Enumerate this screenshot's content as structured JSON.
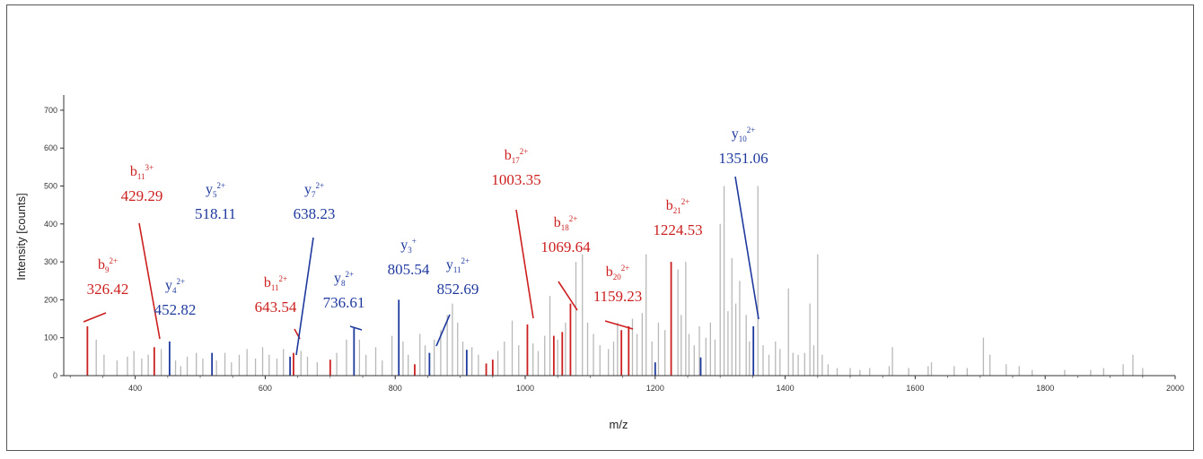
{
  "chart_data": {
    "type": "bar",
    "title": "",
    "xlabel": "m/z",
    "ylabel": "Intensity [counts]",
    "xlim": [
      290,
      2000
    ],
    "ylim": [
      0,
      740
    ],
    "xticks": [
      400,
      600,
      800,
      1000,
      1200,
      1400,
      1600,
      1800,
      2000
    ],
    "xtick_labels": [
      "400",
      "600",
      "800",
      "1000",
      "1200",
      "1400",
      "1600",
      "1800",
      "2000"
    ],
    "yticks": [
      0,
      100,
      200,
      300,
      400,
      500,
      600,
      700
    ],
    "ytick_labels": [
      "0",
      "100",
      "200",
      "300",
      "400",
      "500",
      "600",
      "700"
    ],
    "grid": false,
    "colors": {
      "b_ion": "#cc1f1f",
      "y_ion": "#1f3a9e",
      "unassigned": "#b8b8b8",
      "b_ion_light": "#d98a5a"
    },
    "series": [
      {
        "name": "b ions",
        "peaks": [
          [
            326.42,
            130
          ],
          [
            429.29,
            75
          ],
          [
            643.54,
            60
          ],
          [
            700,
            42
          ],
          [
            830,
            30
          ],
          [
            940,
            32
          ],
          [
            950,
            42
          ],
          [
            1003.35,
            135
          ],
          [
            1069.64,
            190
          ],
          [
            1159.23,
            130
          ],
          [
            1224.53,
            300
          ],
          [
            1044,
            105
          ],
          [
            1057,
            115
          ],
          [
            1148,
            120
          ]
        ]
      },
      {
        "name": "y ions",
        "peaks": [
          [
            452.82,
            90
          ],
          [
            518.11,
            60
          ],
          [
            638.23,
            50
          ],
          [
            736.61,
            125
          ],
          [
            805.54,
            200
          ],
          [
            852.69,
            60
          ],
          [
            910,
            68
          ],
          [
            1200,
            35
          ],
          [
            1270,
            48
          ],
          [
            1351.06,
            130
          ]
        ]
      },
      {
        "name": "unassigned",
        "peaks": [
          [
            340,
            95
          ],
          [
            352,
            55
          ],
          [
            372,
            40
          ],
          [
            388,
            50
          ],
          [
            398,
            65
          ],
          [
            410,
            45
          ],
          [
            420,
            55
          ],
          [
            440,
            70
          ],
          [
            462,
            40
          ],
          [
            470,
            25
          ],
          [
            480,
            50
          ],
          [
            494,
            60
          ],
          [
            504,
            45
          ],
          [
            525,
            40
          ],
          [
            538,
            60
          ],
          [
            548,
            35
          ],
          [
            560,
            55
          ],
          [
            572,
            70
          ],
          [
            585,
            45
          ],
          [
            596,
            75
          ],
          [
            606,
            55
          ],
          [
            618,
            45
          ],
          [
            628,
            70
          ],
          [
            655,
            65
          ],
          [
            665,
            50
          ],
          [
            680,
            35
          ],
          [
            710,
            60
          ],
          [
            725,
            95
          ],
          [
            745,
            95
          ],
          [
            755,
            55
          ],
          [
            770,
            75
          ],
          [
            780,
            40
          ],
          [
            795,
            105
          ],
          [
            812,
            90
          ],
          [
            820,
            55
          ],
          [
            838,
            110
          ],
          [
            846,
            80
          ],
          [
            860,
            95
          ],
          [
            870,
            120
          ],
          [
            880,
            160
          ],
          [
            888,
            190
          ],
          [
            896,
            140
          ],
          [
            904,
            90
          ],
          [
            918,
            75
          ],
          [
            928,
            55
          ],
          [
            958,
            65
          ],
          [
            968,
            90
          ],
          [
            980,
            145
          ],
          [
            990,
            80
          ],
          [
            1012,
            85
          ],
          [
            1020,
            65
          ],
          [
            1030,
            105
          ],
          [
            1038,
            210
          ],
          [
            1050,
            95
          ],
          [
            1062,
            140
          ],
          [
            1078,
            300
          ],
          [
            1088,
            320
          ],
          [
            1096,
            140
          ],
          [
            1105,
            110
          ],
          [
            1115,
            80
          ],
          [
            1128,
            70
          ],
          [
            1136,
            90
          ],
          [
            1142,
            140
          ],
          [
            1165,
            150
          ],
          [
            1172,
            110
          ],
          [
            1180,
            165
          ],
          [
            1186,
            320
          ],
          [
            1195,
            90
          ],
          [
            1205,
            140
          ],
          [
            1215,
            120
          ],
          [
            1235,
            280
          ],
          [
            1240,
            160
          ],
          [
            1247,
            300
          ],
          [
            1252,
            110
          ],
          [
            1260,
            80
          ],
          [
            1268,
            130
          ],
          [
            1278,
            100
          ],
          [
            1285,
            140
          ],
          [
            1292,
            95
          ],
          [
            1300,
            400
          ],
          [
            1306,
            500
          ],
          [
            1312,
            170
          ],
          [
            1318,
            310
          ],
          [
            1324,
            190
          ],
          [
            1330,
            250
          ],
          [
            1340,
            160
          ],
          [
            1345,
            90
          ],
          [
            1358,
            500
          ],
          [
            1366,
            80
          ],
          [
            1375,
            55
          ],
          [
            1385,
            90
          ],
          [
            1392,
            70
          ],
          [
            1405,
            230
          ],
          [
            1412,
            60
          ],
          [
            1420,
            55
          ],
          [
            1430,
            60
          ],
          [
            1438,
            190
          ],
          [
            1444,
            80
          ],
          [
            1450,
            320
          ],
          [
            1457,
            55
          ],
          [
            1466,
            30
          ],
          [
            1480,
            20
          ],
          [
            1500,
            20
          ],
          [
            1515,
            15
          ],
          [
            1530,
            20
          ],
          [
            1560,
            25
          ],
          [
            1565,
            75
          ],
          [
            1590,
            20
          ],
          [
            1620,
            25
          ],
          [
            1625,
            35
          ],
          [
            1660,
            25
          ],
          [
            1680,
            20
          ],
          [
            1705,
            100
          ],
          [
            1715,
            55
          ],
          [
            1740,
            30
          ],
          [
            1760,
            25
          ],
          [
            1780,
            15
          ],
          [
            1830,
            15
          ],
          [
            1870,
            15
          ],
          [
            1890,
            20
          ],
          [
            1920,
            30
          ],
          [
            1935,
            55
          ],
          [
            1950,
            20
          ]
        ]
      }
    ],
    "annotations": [
      {
        "ion": "b",
        "sub": "9",
        "sup": "2+",
        "mz": "326.42",
        "color": "red",
        "peak": 326.42
      },
      {
        "ion": "b",
        "sub": "11",
        "sup": "3+",
        "mz": "429.29",
        "color": "red",
        "peak": 429.29
      },
      {
        "ion": "y",
        "sub": "4",
        "sup": "2+",
        "mz": "452.82",
        "color": "blue",
        "peak": 452.82
      },
      {
        "ion": "y",
        "sub": "5",
        "sup": "2+",
        "mz": "518.11",
        "color": "blue",
        "peak": 518.11
      },
      {
        "ion": "b",
        "sub": "11",
        "sup": "2+",
        "mz": "643.54",
        "color": "red",
        "peak": 643.54
      },
      {
        "ion": "y",
        "sub": "7",
        "sup": "2+",
        "mz": "638.23",
        "color": "blue",
        "peak": 638.23
      },
      {
        "ion": "y",
        "sub": "8",
        "sup": "2+",
        "mz": "736.61",
        "color": "blue",
        "peak": 736.61
      },
      {
        "ion": "y",
        "sub": "3",
        "sup": "+",
        "mz": "805.54",
        "color": "blue",
        "peak": 805.54
      },
      {
        "ion": "y",
        "sub": "11",
        "sup": "2+",
        "mz": "852.69",
        "color": "blue",
        "peak": 852.69
      },
      {
        "ion": "b",
        "sub": "17",
        "sup": "2+",
        "mz": "1003.35",
        "color": "red",
        "peak": 1003.35
      },
      {
        "ion": "b",
        "sub": "18",
        "sup": "2+",
        "mz": "1069.64",
        "color": "red",
        "peak": 1069.64
      },
      {
        "ion": "b",
        "sub": "20",
        "sup": "2+",
        "mz": "1159.23",
        "color": "red",
        "peak": 1159.23
      },
      {
        "ion": "b",
        "sub": "21",
        "sup": "2+",
        "mz": "1224.53",
        "color": "red",
        "peak": 1224.53
      },
      {
        "ion": "y",
        "sub": "10",
        "sup": "2+",
        "mz": "1351.06",
        "color": "blue",
        "peak": 1351.06
      }
    ]
  }
}
